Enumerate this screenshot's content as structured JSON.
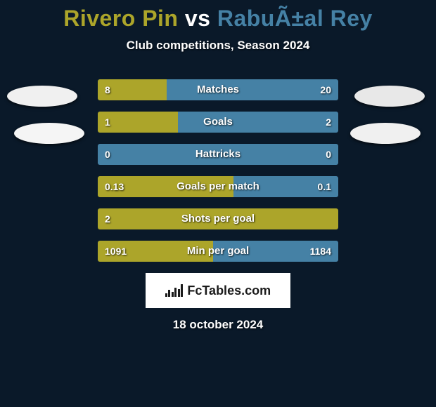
{
  "background_color": "#0a1929",
  "header": {
    "player1": "Rivero Pin",
    "vs": " vs ",
    "player2": "RabuÃ±al Rey",
    "player1_color": "#aca52a",
    "player2_color": "#4581a5",
    "subtitle": "Club competitions, Season 2024"
  },
  "badges": {
    "left1_color": "#f0f0f0",
    "left2_color": "#f5f5f5",
    "right1_color": "#e8e8e8",
    "right2_color": "#f0f0f0"
  },
  "bars": {
    "left_color": "#aca52a",
    "right_color": "#4581a5",
    "rows": [
      {
        "label": "Matches",
        "left_val": "8",
        "right_val": "20",
        "left_pct": 28.6
      },
      {
        "label": "Goals",
        "left_val": "1",
        "right_val": "2",
        "left_pct": 33.3
      },
      {
        "label": "Hattricks",
        "left_val": "0",
        "right_val": "0",
        "left_pct": 0
      },
      {
        "label": "Goals per match",
        "left_val": "0.13",
        "right_val": "0.1",
        "left_pct": 56.5
      },
      {
        "label": "Shots per goal",
        "left_val": "2",
        "right_val": "",
        "left_pct": 100
      },
      {
        "label": "Min per goal",
        "left_val": "1091",
        "right_val": "1184",
        "left_pct": 48.0
      }
    ]
  },
  "footer": {
    "brand": "FcTables.com",
    "date": "18 october 2024"
  }
}
